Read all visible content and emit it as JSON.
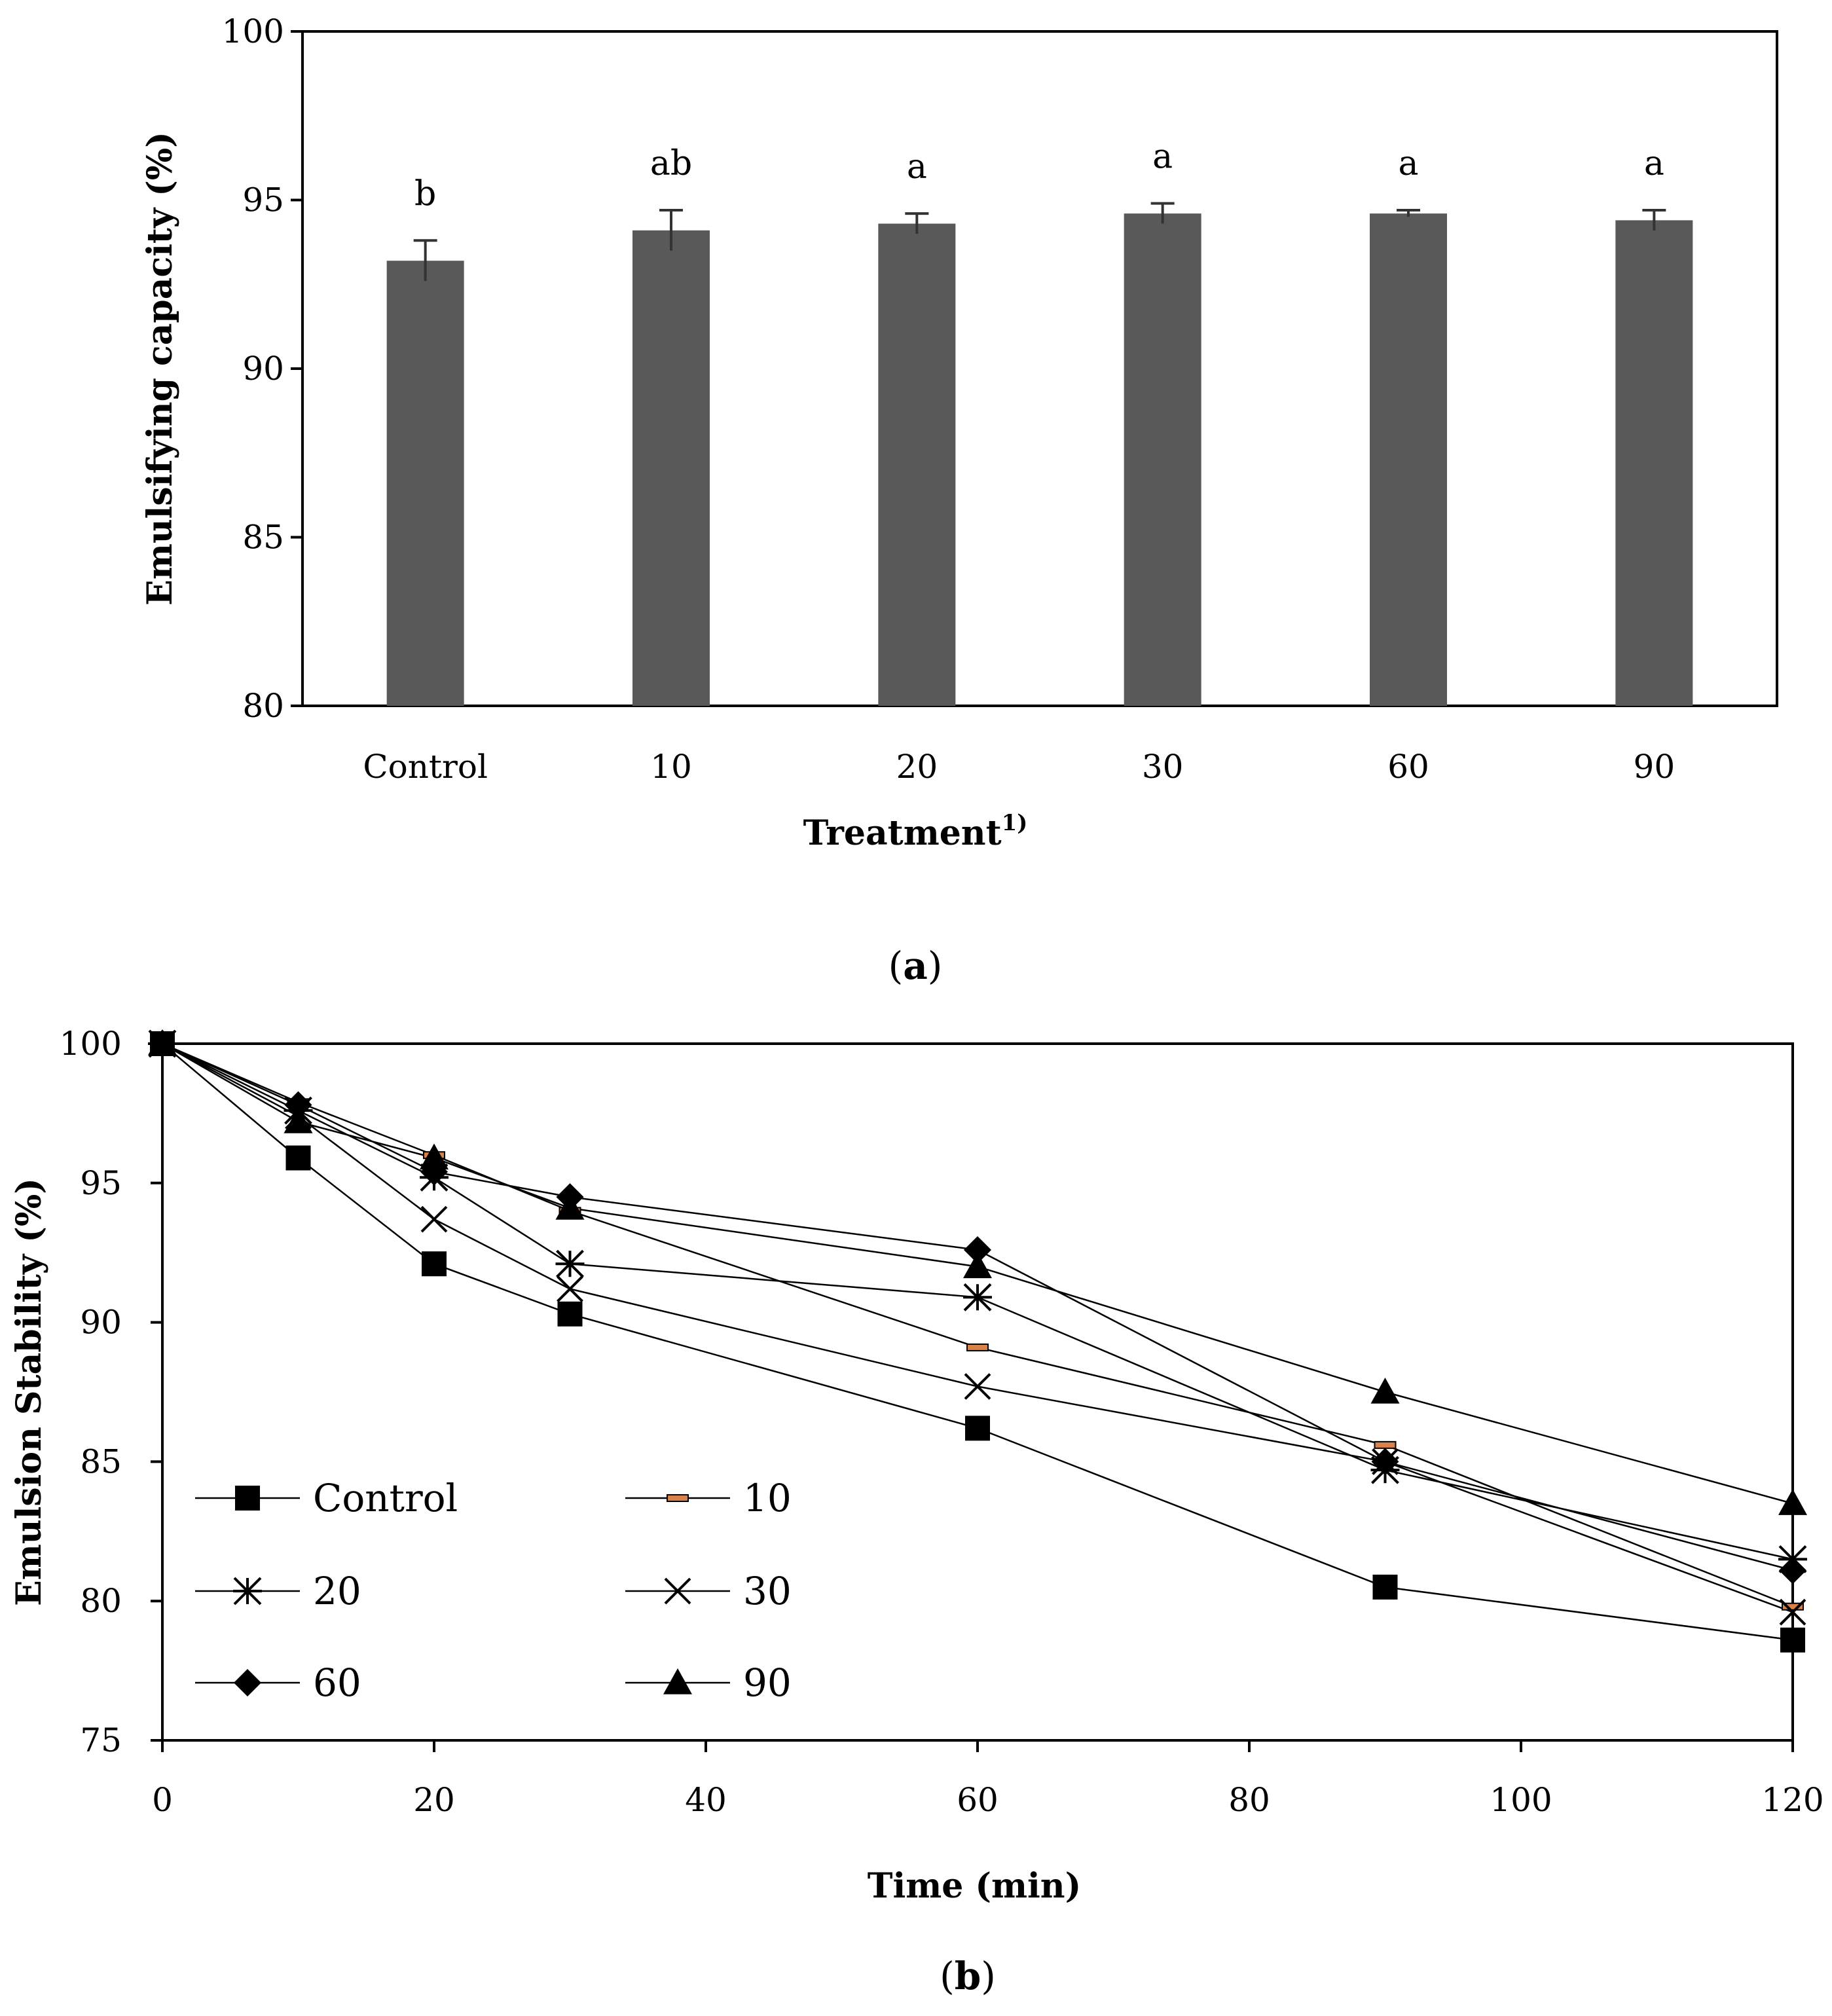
{
  "chart_data": [
    {
      "panel": "a",
      "type": "bar",
      "title": "",
      "xlabel": "Treatment",
      "xlabel_superscript": "1)",
      "ylabel": "Emulsifying capacity (%)",
      "ylim": [
        80,
        100
      ],
      "yticks": [
        80,
        85,
        90,
        95,
        100
      ],
      "categories": [
        "Control",
        "10",
        "20",
        "30",
        "60",
        "90"
      ],
      "values": [
        93.2,
        94.1,
        94.3,
        94.6,
        94.6,
        94.4
      ],
      "errors": [
        0.6,
        0.6,
        0.3,
        0.3,
        0.1,
        0.3
      ],
      "significance": [
        "b",
        "ab",
        "a",
        "a",
        "a",
        "a"
      ],
      "bar_color": "#595959",
      "panel_label_parts": [
        "(",
        "a",
        ")"
      ]
    },
    {
      "panel": "b",
      "type": "line",
      "title": "",
      "xlabel": "Time (min)",
      "ylabel": "Emulsion Stability (%)",
      "xlim": [
        0,
        120
      ],
      "ylim": [
        75,
        100
      ],
      "xticks": [
        0,
        20,
        40,
        60,
        80,
        100,
        120
      ],
      "yticks": [
        75,
        80,
        85,
        90,
        95,
        100
      ],
      "x": [
        0,
        10,
        20,
        30,
        60,
        90,
        120
      ],
      "series": [
        {
          "name": "Control",
          "marker": "square",
          "values": [
            100,
            95.9,
            92.1,
            90.3,
            86.2,
            80.5,
            78.6
          ]
        },
        {
          "name": "10",
          "marker": "dash",
          "values": [
            100,
            97.9,
            96.0,
            94.0,
            89.1,
            85.6,
            79.8
          ]
        },
        {
          "name": "20",
          "marker": "asterisk",
          "values": [
            100,
            97.6,
            95.2,
            92.1,
            90.9,
            84.7,
            81.5
          ]
        },
        {
          "name": "30",
          "marker": "x",
          "values": [
            100,
            97.4,
            93.7,
            91.2,
            87.7,
            85.0,
            79.6
          ]
        },
        {
          "name": "60",
          "marker": "diamond",
          "values": [
            100,
            97.8,
            95.4,
            94.5,
            92.6,
            85.0,
            81.1
          ]
        },
        {
          "name": "90",
          "marker": "triangle",
          "values": [
            100,
            97.2,
            95.9,
            94.1,
            92.0,
            87.5,
            83.5
          ]
        }
      ],
      "legend_position": "bottom-left",
      "marker_color": "#000000",
      "dash_marker_color": "#d9824a",
      "panel_label_parts": [
        "(",
        "b",
        ")"
      ]
    }
  ]
}
